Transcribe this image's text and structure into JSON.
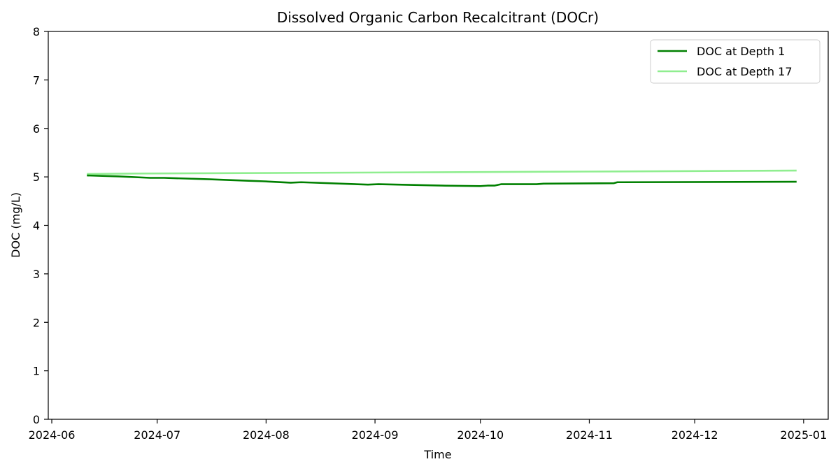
{
  "chart_data": {
    "type": "line",
    "title": "Dissolved Organic Carbon Recalcitrant (DOCr)",
    "xlabel": "Time",
    "ylabel": "DOC (mg/L)",
    "xlim": [
      "2024-05-31",
      "2025-01-08"
    ],
    "ylim": [
      0,
      8
    ],
    "xticks": [
      "2024-06",
      "2024-07",
      "2024-08",
      "2024-09",
      "2024-10",
      "2024-11",
      "2024-12",
      "2025-01"
    ],
    "xtick_dates": [
      "2024-06-01",
      "2024-07-01",
      "2024-08-01",
      "2024-09-01",
      "2024-10-01",
      "2024-11-01",
      "2024-12-01",
      "2025-01-01"
    ],
    "yticks": [
      0,
      1,
      2,
      3,
      4,
      5,
      6,
      7,
      8
    ],
    "grid": false,
    "legend_position": "top-right",
    "series": [
      {
        "name": "DOC at Depth 1",
        "color": "#008000",
        "points": [
          [
            "2024-06-11",
            5.03
          ],
          [
            "2024-06-20",
            5.01
          ],
          [
            "2024-06-29",
            4.98
          ],
          [
            "2024-07-03",
            4.98
          ],
          [
            "2024-07-16",
            4.95
          ],
          [
            "2024-07-27",
            4.92
          ],
          [
            "2024-07-31",
            4.91
          ],
          [
            "2024-08-08",
            4.88
          ],
          [
            "2024-08-11",
            4.89
          ],
          [
            "2024-08-30",
            4.84
          ],
          [
            "2024-09-02",
            4.85
          ],
          [
            "2024-09-20",
            4.82
          ],
          [
            "2024-10-01",
            4.81
          ],
          [
            "2024-10-03",
            4.82
          ],
          [
            "2024-10-05",
            4.82
          ],
          [
            "2024-10-07",
            4.85
          ],
          [
            "2024-10-17",
            4.85
          ],
          [
            "2024-10-19",
            4.86
          ],
          [
            "2024-11-08",
            4.87
          ],
          [
            "2024-11-09",
            4.89
          ],
          [
            "2024-12-30",
            4.9
          ]
        ]
      },
      {
        "name": "DOC at Depth 17",
        "color": "#90ee90",
        "points": [
          [
            "2024-06-11",
            5.06
          ],
          [
            "2024-06-25",
            5.07
          ],
          [
            "2024-08-01",
            5.08
          ],
          [
            "2024-09-01",
            5.09
          ],
          [
            "2024-10-01",
            5.1
          ],
          [
            "2024-11-01",
            5.11
          ],
          [
            "2024-12-01",
            5.12
          ],
          [
            "2024-12-30",
            5.13
          ]
        ]
      }
    ]
  }
}
